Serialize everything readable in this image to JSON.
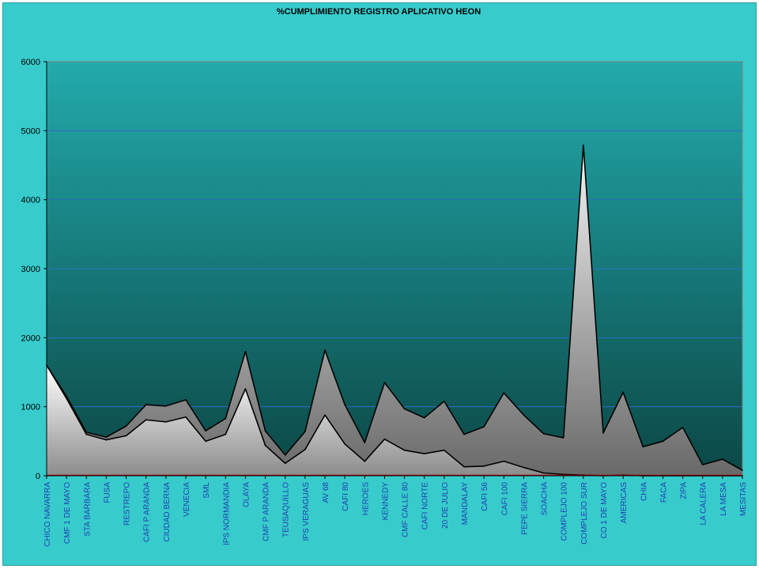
{
  "chart_data": {
    "type": "area",
    "title": "%CUMPLIMIENTO REGISTRO APLICATIVO HEON",
    "xlabel": "",
    "ylabel": "",
    "ylim": [
      0,
      6000
    ],
    "yticks": [
      "0",
      "1000",
      "2000",
      "3000",
      "4000",
      "5000",
      "6000"
    ],
    "grid": true,
    "legend": "none",
    "categories": [
      "CHICO NAVARRA",
      "CMF 1 DE MAYO",
      "STA BARBARA",
      "FUSA",
      "RESTREPO",
      "CAFI  P  ARANDA",
      "CIUDAD BERNA",
      "VENECIA",
      "SML",
      "IPS NORMANDIA",
      "OLAYA",
      "CMF P ARANDA",
      "TEUSAQUILLO",
      "IPS VERAGUAS",
      "AV 68",
      "CAFI 80",
      "HEROES",
      "KENNEDY",
      "CMF CALLE  80",
      "CAFI NORTE",
      "20 DE JULIO",
      "MANDALAY",
      "CAFI 56",
      "CAFI 100",
      "PEPE SIERRA",
      "SOACHA",
      "COMPLEJO  100",
      "COMPLEJO  SUR",
      "CO 1 DE MAYO",
      "AMERICAS",
      "CHIA",
      "FACA",
      "ZIPA",
      "LA CALERA",
      "LA MESA",
      "MESITAS"
    ],
    "series": [
      {
        "values": [
          1600,
          1150,
          630,
          560,
          720,
          1030,
          1010,
          1100,
          650,
          830,
          1800,
          650,
          300,
          640,
          1820,
          1030,
          480,
          1350,
          970,
          840,
          1080,
          600,
          710,
          1200,
          880,
          610,
          550,
          4790,
          620,
          1210,
          420,
          500,
          700,
          160,
          240,
          80
        ]
      },
      {
        "values": [
          1600,
          1120,
          600,
          520,
          580,
          810,
          780,
          850,
          500,
          600,
          1260,
          440,
          180,
          380,
          880,
          460,
          210,
          530,
          370,
          320,
          370,
          130,
          140,
          210,
          120,
          40,
          20,
          10,
          0,
          10,
          0,
          0,
          0,
          0,
          0,
          0
        ]
      },
      {
        "values": [
          0,
          0,
          0,
          0,
          0,
          0,
          0,
          0,
          0,
          0,
          0,
          0,
          0,
          0,
          0,
          0,
          0,
          0,
          0,
          0,
          0,
          0,
          0,
          0,
          0,
          0,
          0,
          0,
          0,
          0,
          0,
          0,
          0,
          0,
          0,
          0
        ]
      }
    ],
    "colors": {
      "frame_bg": "#37cbcc",
      "plot_top": "#23aaac",
      "plot_bottom": "#0b4745",
      "back_area_top": "#f5f5f5",
      "back_area_bottom": "#686868",
      "front_area_top": "#ffffff",
      "front_area_bottom": "#8a8a8a",
      "zero_line": "#c00000",
      "grid": "#2b6fc4",
      "x_label": "#1f3fb0"
    }
  }
}
